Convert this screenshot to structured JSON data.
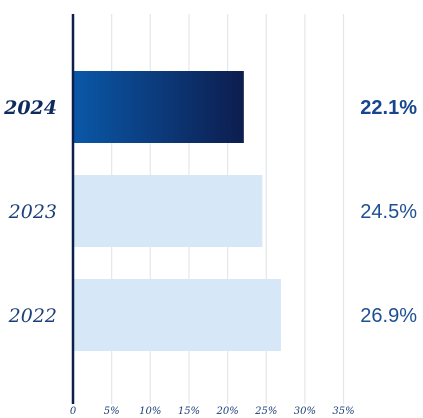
{
  "chart_data": {
    "type": "bar",
    "orientation": "horizontal",
    "categories": [
      "2024",
      "2023",
      "2022"
    ],
    "values": [
      22.1,
      24.5,
      26.9
    ],
    "value_labels": [
      "22.1%",
      "24.5%",
      "26.9%"
    ],
    "highlight": "2024",
    "xlim": [
      0,
      35
    ],
    "x_ticks": [
      0,
      5,
      10,
      15,
      20,
      25,
      30,
      35
    ],
    "x_tick_labels": [
      "0",
      "5%",
      "10%",
      "15%",
      "20%",
      "25%",
      "30%",
      "35%"
    ],
    "grid": true,
    "colors": {
      "highlight_start": "#0a58a8",
      "highlight_end": "#0d1d4e",
      "bar": "#d6e8f7",
      "axis": "#0c1f4a"
    }
  }
}
